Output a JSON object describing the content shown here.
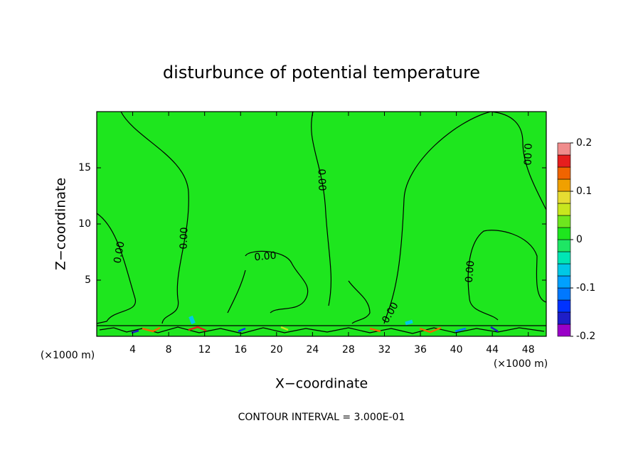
{
  "chart_data": {
    "type": "contour",
    "title": "disturbunce of potential temperature",
    "xlabel": "X−coordinate",
    "ylabel": "Z−coordinate",
    "x_unit": "(×1000 m)",
    "xlim": [
      0,
      50
    ],
    "xticks": [
      4,
      8,
      12,
      16,
      20,
      24,
      28,
      32,
      36,
      40,
      44,
      48
    ],
    "ylim": [
      0,
      20
    ],
    "yticks": [
      5,
      10,
      15
    ],
    "fill_color": "#1ee61e",
    "clim": [
      -0.2,
      0.2
    ],
    "cticks": [
      0.2,
      0.1,
      0,
      -0.1,
      -0.2
    ],
    "colorbar_colors": [
      "#9a00c8",
      "#1e1ec8",
      "#0032ff",
      "#0078ff",
      "#00a0ff",
      "#00c8e6",
      "#00e6b4",
      "#1ee664",
      "#1ee61e",
      "#6ee61e",
      "#c8e61e",
      "#e6dc32",
      "#f0a000",
      "#f06400",
      "#e61e1e",
      "#f08c8c"
    ],
    "contour_labels": [
      "0.00",
      "0.00",
      "0.00",
      "0.00",
      "0.00",
      "0.00",
      "0.00"
    ],
    "contour_interval_note": "CONTOUR INTERVAL = 3.000E-01"
  }
}
